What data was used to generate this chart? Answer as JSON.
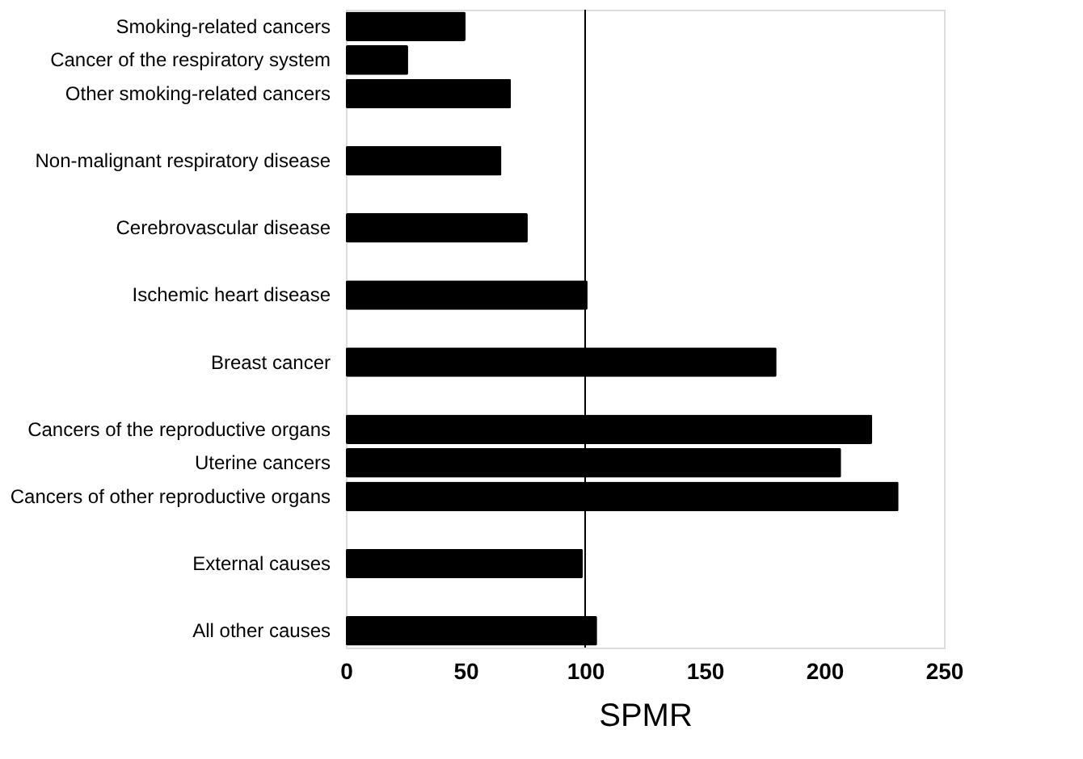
{
  "chart_data": {
    "type": "bar",
    "orientation": "horizontal",
    "xlabel": "SPMR",
    "categories": [
      "Smoking-related cancers",
      "Cancer of the respiratory system",
      "Other smoking-related cancers",
      null,
      "Non-malignant respiratory disease",
      null,
      "Cerebrovascular disease",
      null,
      "Ischemic heart disease",
      null,
      "Breast cancer",
      null,
      "Cancers of the reproductive organs",
      "Uterine cancers",
      "Cancers of other reproductive organs",
      null,
      "External causes",
      null,
      "All other causes"
    ],
    "values": [
      50,
      26,
      69,
      null,
      65,
      null,
      76,
      null,
      101,
      null,
      180,
      null,
      220,
      207,
      231,
      null,
      99,
      null,
      105
    ],
    "color": "#000000",
    "xlim": [
      0,
      250
    ],
    "xticks": [
      0,
      50,
      100,
      150,
      200,
      250
    ],
    "grid": false,
    "ref_lines": [
      {
        "axis": "x",
        "value": 100,
        "color": "#000000"
      }
    ]
  }
}
